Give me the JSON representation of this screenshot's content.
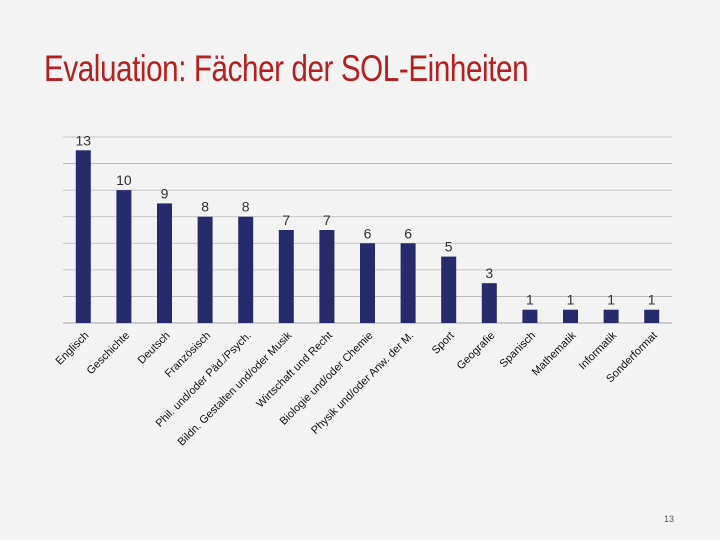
{
  "slide": {
    "title": "Evaluation: Fächer der SOL-Einheiten",
    "page_number": "13"
  },
  "colors": {
    "title": "#b2201f",
    "bar": "#262c6b",
    "grid": "#b5b5b5",
    "background": "#f3f3f3"
  },
  "chart_data": {
    "type": "bar",
    "title": "",
    "xlabel": "",
    "ylabel": "",
    "ylim": [
      0,
      14
    ],
    "grid": true,
    "legend": "none",
    "categories": [
      "Englisch",
      "Geschichte",
      "Deutsch",
      "Französisch",
      "Phil. und/oder Päd./Psych.",
      "Bildn. Gestalten und/oder Musik",
      "Wirtschaft und Recht",
      "Biologie und/oder Chemie",
      "Physik und/oder Anw. der M.",
      "Sport",
      "Geografie",
      "Spanisch",
      "Mathematik",
      "Informatik",
      "Sonderformat"
    ],
    "values": [
      13,
      10,
      9,
      8,
      8,
      7,
      7,
      6,
      6,
      5,
      3,
      1,
      1,
      1,
      1
    ]
  }
}
